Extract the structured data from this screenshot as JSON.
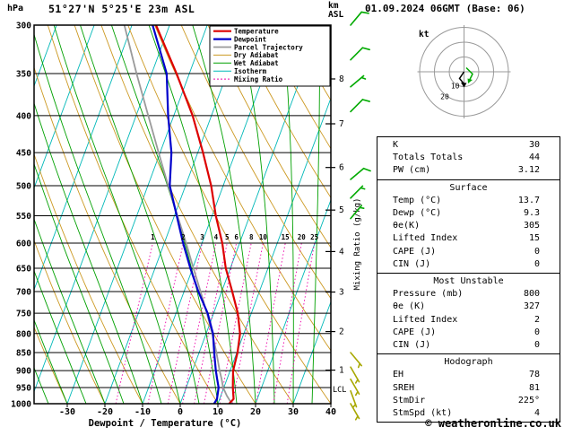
{
  "header": {
    "pressure_unit": "hPa",
    "station": "51°27'N 5°25'E 23m ASL",
    "altitude_unit": "km",
    "altitude_ref": "ASL",
    "datetime": "01.09.2024 06GMT (Base: 06)"
  },
  "colors": {
    "temperature": "#dd0000",
    "dewpoint": "#0000cc",
    "parcel": "#9a9a9a",
    "dry_adiabat": "#cc9922",
    "wet_adiabat": "#00a000",
    "isotherm": "#00b8b8",
    "mixing_ratio": "#ee00aa",
    "grid": "#000000",
    "barb_upper": "#00aa00",
    "barb_lower": "#a8a800",
    "hodo_grid": "#999999"
  },
  "legend_items": [
    {
      "label": "Temperature",
      "color_key": "temperature",
      "width": 2.2,
      "dash": ""
    },
    {
      "label": "Dewpoint",
      "color_key": "dewpoint",
      "width": 2.2,
      "dash": ""
    },
    {
      "label": "Parcel Trajectory",
      "color_key": "parcel",
      "width": 1.8,
      "dash": ""
    },
    {
      "label": "Dry Adiabat",
      "color_key": "dry_adiabat",
      "width": 1,
      "dash": ""
    },
    {
      "label": "Wet Adiabat",
      "color_key": "wet_adiabat",
      "width": 1,
      "dash": ""
    },
    {
      "label": "Isotherm",
      "color_key": "isotherm",
      "width": 1,
      "dash": ""
    },
    {
      "label": "Mixing Ratio",
      "color_key": "mixing_ratio",
      "width": 1,
      "dash": "2,2"
    }
  ],
  "axes": {
    "pressure_ticks": [
      300,
      350,
      400,
      450,
      500,
      550,
      600,
      650,
      700,
      750,
      800,
      850,
      900,
      950,
      1000
    ],
    "temp_ticks": [
      -30,
      -20,
      -10,
      0,
      10,
      20,
      30,
      40
    ],
    "xlabel": "Dewpoint / Temperature (°C)",
    "km_ticks": [
      1,
      2,
      3,
      4,
      5,
      6,
      7,
      8
    ],
    "mixing_axis_label": "Mixing Ratio (g/kg)",
    "mixing_ratio_values": [
      1,
      2,
      3,
      4,
      5,
      6,
      8,
      10,
      15,
      20,
      25
    ],
    "lcl_label": "LCL"
  },
  "chart_data": {
    "type": "line",
    "subtype": "skew-t-log-p",
    "pressure_range_hpa": [
      300,
      1000
    ],
    "temp_axis_range_c": [
      -30,
      40
    ],
    "temperature_profile": [
      [
        1000,
        13.0
      ],
      [
        985,
        13.7
      ],
      [
        950,
        12.4
      ],
      [
        925,
        11.6
      ],
      [
        900,
        10.8
      ],
      [
        850,
        10.2
      ],
      [
        800,
        9.0
      ],
      [
        750,
        6.4
      ],
      [
        700,
        2.8
      ],
      [
        650,
        -1.2
      ],
      [
        600,
        -4.6
      ],
      [
        550,
        -9.0
      ],
      [
        500,
        -13.2
      ],
      [
        450,
        -18.6
      ],
      [
        400,
        -25.0
      ],
      [
        350,
        -33.4
      ],
      [
        300,
        -43.6
      ]
    ],
    "dewpoint_profile": [
      [
        1000,
        9.0
      ],
      [
        985,
        9.3
      ],
      [
        950,
        8.6
      ],
      [
        925,
        7.4
      ],
      [
        900,
        6.2
      ],
      [
        850,
        4.0
      ],
      [
        800,
        1.8
      ],
      [
        750,
        -1.6
      ],
      [
        700,
        -6.2
      ],
      [
        650,
        -10.6
      ],
      [
        600,
        -15.0
      ],
      [
        550,
        -19.4
      ],
      [
        500,
        -24.2
      ],
      [
        450,
        -27.0
      ],
      [
        400,
        -31.5
      ],
      [
        350,
        -36.0
      ],
      [
        300,
        -44.5
      ]
    ],
    "parcel_profile": [
      [
        1000,
        13.7
      ],
      [
        975,
        11.6
      ],
      [
        950,
        9.8
      ],
      [
        925,
        8.6
      ],
      [
        900,
        7.2
      ],
      [
        850,
        4.6
      ],
      [
        800,
        1.6
      ],
      [
        750,
        -1.8
      ],
      [
        700,
        -5.6
      ],
      [
        650,
        -9.8
      ],
      [
        600,
        -14.2
      ],
      [
        550,
        -19.2
      ],
      [
        500,
        -24.6
      ],
      [
        450,
        -30.4
      ],
      [
        400,
        -36.8
      ],
      [
        350,
        -44.0
      ],
      [
        300,
        -52.0
      ]
    ],
    "wind_barbs": [
      [
        300,
        10,
        40
      ],
      [
        335,
        10,
        45
      ],
      [
        365,
        5,
        50
      ],
      [
        395,
        10,
        45
      ],
      [
        490,
        10,
        50
      ],
      [
        520,
        5,
        45
      ],
      [
        555,
        5,
        40
      ],
      [
        850,
        5,
        140
      ],
      [
        890,
        5,
        150
      ],
      [
        925,
        5,
        150
      ],
      [
        960,
        5,
        160
      ],
      [
        1000,
        5,
        150
      ]
    ]
  },
  "hodograph": {
    "unit_label": "kt",
    "ring_radii_kt": [
      10,
      20,
      30
    ],
    "ring_labels": [
      "10",
      "20"
    ]
  },
  "panel": {
    "indices": {
      "rows": [
        {
          "label": "K",
          "value": "30"
        },
        {
          "label": "Totals Totals",
          "value": "44"
        },
        {
          "label": "PW (cm)",
          "value": "3.12"
        }
      ]
    },
    "surface": {
      "title": "Surface",
      "rows": [
        {
          "label": "Temp (°C)",
          "value": "13.7"
        },
        {
          "label": "Dewp (°C)",
          "value": "9.3"
        },
        {
          "label": "θe(K)",
          "value": "305"
        },
        {
          "label": "Lifted Index",
          "value": "15"
        },
        {
          "label": "CAPE (J)",
          "value": "0"
        },
        {
          "label": "CIN (J)",
          "value": "0"
        }
      ]
    },
    "most_unstable": {
      "title": "Most Unstable",
      "rows": [
        {
          "label": "Pressure (mb)",
          "value": "800"
        },
        {
          "label": "θe (K)",
          "value": "327"
        },
        {
          "label": "Lifted Index",
          "value": "2"
        },
        {
          "label": "CAPE (J)",
          "value": "0"
        },
        {
          "label": "CIN (J)",
          "value": "0"
        }
      ]
    },
    "hodograph_stats": {
      "title": "Hodograph",
      "rows": [
        {
          "label": "EH",
          "value": "78"
        },
        {
          "label": "SREH",
          "value": "81"
        },
        {
          "label": "StmDir",
          "value": "225°"
        },
        {
          "label": "StmSpd (kt)",
          "value": "4"
        }
      ]
    }
  },
  "footer": {
    "credit": "© weatheronline.co.uk"
  }
}
